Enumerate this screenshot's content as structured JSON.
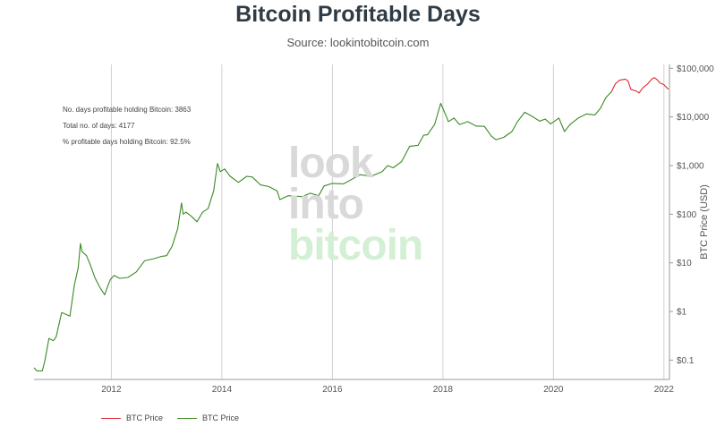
{
  "header": {
    "title": "Bitcoin Profitable Days",
    "subtitle": "Source: lookintobitcoin.com"
  },
  "stats": {
    "days_profitable": "No. days profitable holding Bitcoin: 3863",
    "total_days": "Total no. of days: 4177",
    "pct_profitable": "% profitable days holding Bitcoin: 92.5%"
  },
  "watermark": {
    "line1": "look",
    "line2": "into",
    "line3": "bitcoin"
  },
  "legend": [
    {
      "label": "BTC Price",
      "color": "#e0282e"
    },
    {
      "label": "BTC Price",
      "color": "#3a8a24"
    }
  ],
  "chart_data": {
    "type": "line",
    "title": "Bitcoin Profitable Days",
    "subtitle": "Source: lookintobitcoin.com",
    "xlabel": "",
    "ylabel": "BTC Price (USD)",
    "y_scale": "log",
    "xlim": [
      2010.6,
      2022.1
    ],
    "ylim": [
      0.04,
      120000
    ],
    "x_ticks": [
      2012,
      2014,
      2016,
      2018,
      2020,
      2022
    ],
    "x_tick_labels": [
      "2012",
      "2014",
      "2016",
      "2018",
      "2020",
      "2022"
    ],
    "y_ticks": [
      0.1,
      1,
      10,
      100,
      1000,
      10000,
      100000
    ],
    "y_tick_labels": [
      "$0.1",
      "$1",
      "$10",
      "$100",
      "$1,000",
      "$10,000",
      "$100,000"
    ],
    "grid": "vertical",
    "legend_position": "bottom-left",
    "series": [
      {
        "name": "BTC Price",
        "color": "#3a8a24",
        "points": [
          [
            2010.6,
            0.07
          ],
          [
            2010.65,
            0.06
          ],
          [
            2010.75,
            0.06
          ],
          [
            2010.8,
            0.1
          ],
          [
            2010.87,
            0.28
          ],
          [
            2010.95,
            0.25
          ],
          [
            2011.0,
            0.3
          ],
          [
            2011.1,
            0.95
          ],
          [
            2011.15,
            0.9
          ],
          [
            2011.25,
            0.8
          ],
          [
            2011.33,
            3.5
          ],
          [
            2011.4,
            8
          ],
          [
            2011.44,
            25
          ],
          [
            2011.47,
            17
          ],
          [
            2011.55,
            14
          ],
          [
            2011.62,
            9
          ],
          [
            2011.7,
            5
          ],
          [
            2011.8,
            3
          ],
          [
            2011.88,
            2.2
          ],
          [
            2011.92,
            3
          ],
          [
            2011.98,
            4.5
          ],
          [
            2012.05,
            5.5
          ],
          [
            2012.15,
            4.8
          ],
          [
            2012.3,
            5
          ],
          [
            2012.45,
            6.5
          ],
          [
            2012.6,
            11
          ],
          [
            2012.75,
            12
          ],
          [
            2012.9,
            13.5
          ],
          [
            2013.0,
            14
          ],
          [
            2013.1,
            22
          ],
          [
            2013.2,
            50
          ],
          [
            2013.27,
            170
          ],
          [
            2013.3,
            100
          ],
          [
            2013.35,
            110
          ],
          [
            2013.45,
            90
          ],
          [
            2013.55,
            70
          ],
          [
            2013.65,
            110
          ],
          [
            2013.75,
            130
          ],
          [
            2013.85,
            300
          ],
          [
            2013.92,
            1100
          ],
          [
            2013.97,
            750
          ],
          [
            2014.05,
            850
          ],
          [
            2014.15,
            600
          ],
          [
            2014.3,
            450
          ],
          [
            2014.45,
            600
          ],
          [
            2014.55,
            580
          ],
          [
            2014.7,
            400
          ],
          [
            2014.85,
            370
          ],
          [
            2015.0,
            300
          ],
          [
            2015.05,
            200
          ],
          [
            2015.2,
            240
          ],
          [
            2015.45,
            230
          ],
          [
            2015.6,
            270
          ],
          [
            2015.75,
            240
          ],
          [
            2015.85,
            380
          ],
          [
            2016.0,
            430
          ],
          [
            2016.2,
            420
          ],
          [
            2016.4,
            560
          ],
          [
            2016.5,
            650
          ],
          [
            2016.7,
            600
          ],
          [
            2016.9,
            750
          ],
          [
            2017.0,
            1000
          ],
          [
            2017.1,
            900
          ],
          [
            2017.25,
            1200
          ],
          [
            2017.4,
            2500
          ],
          [
            2017.55,
            2600
          ],
          [
            2017.65,
            4200
          ],
          [
            2017.72,
            4300
          ],
          [
            2017.85,
            7000
          ],
          [
            2017.96,
            19000
          ],
          [
            2018.05,
            11000
          ],
          [
            2018.1,
            8000
          ],
          [
            2018.2,
            9500
          ],
          [
            2018.3,
            7000
          ],
          [
            2018.45,
            8000
          ],
          [
            2018.6,
            6500
          ],
          [
            2018.75,
            6400
          ],
          [
            2018.88,
            4000
          ],
          [
            2018.96,
            3400
          ],
          [
            2019.1,
            3800
          ],
          [
            2019.25,
            5000
          ],
          [
            2019.35,
            8000
          ],
          [
            2019.48,
            12500
          ],
          [
            2019.6,
            10500
          ],
          [
            2019.75,
            8200
          ],
          [
            2019.85,
            9000
          ],
          [
            2019.95,
            7200
          ],
          [
            2020.1,
            9500
          ],
          [
            2020.2,
            5000
          ],
          [
            2020.3,
            7000
          ],
          [
            2020.45,
            9500
          ],
          [
            2020.6,
            11500
          ],
          [
            2020.75,
            11000
          ],
          [
            2020.85,
            15000
          ],
          [
            2020.95,
            25000
          ],
          [
            2021.05,
            33000
          ]
        ]
      },
      {
        "name": "BTC Price",
        "color": "#e0282e",
        "points": [
          [
            2021.05,
            33000
          ],
          [
            2021.12,
            48000
          ],
          [
            2021.2,
            57000
          ],
          [
            2021.3,
            60000
          ],
          [
            2021.35,
            55000
          ],
          [
            2021.4,
            37000
          ],
          [
            2021.47,
            35000
          ],
          [
            2021.52,
            33000
          ],
          [
            2021.55,
            31000
          ],
          [
            2021.62,
            40000
          ],
          [
            2021.7,
            47000
          ],
          [
            2021.78,
            60000
          ],
          [
            2021.83,
            64000
          ],
          [
            2021.88,
            58000
          ],
          [
            2021.93,
            50000
          ],
          [
            2022.0,
            46000
          ],
          [
            2022.05,
            40000
          ],
          [
            2022.08,
            37000
          ]
        ]
      }
    ]
  }
}
